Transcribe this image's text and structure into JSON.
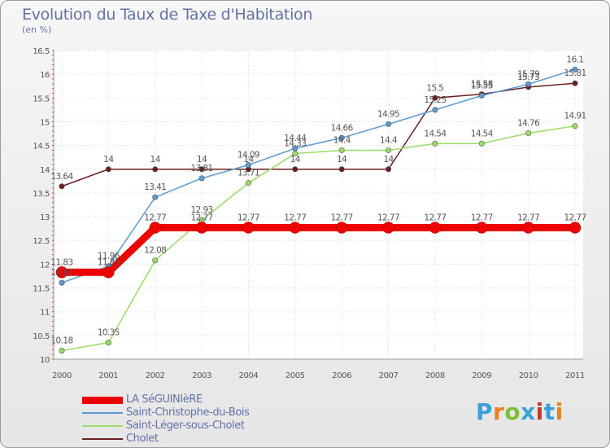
{
  "header": {
    "title": "Evolution du Taux de Taxe d'Habitation",
    "subtitle": "(en %)"
  },
  "logo": {
    "text": "Proxiti"
  },
  "chart_data": {
    "type": "line",
    "title": "Evolution du Taux de Taxe d'Habitation",
    "ylabel": "(en %)",
    "xlabel": "",
    "ylim": [
      10,
      16.5
    ],
    "grid": true,
    "x": [
      "2000",
      "2001",
      "2002",
      "2003",
      "2004",
      "2005",
      "2006",
      "2007",
      "2008",
      "2009",
      "2010",
      "2011"
    ],
    "yticks": [
      "10",
      "10.5",
      "11",
      "11.5",
      "12",
      "12.5",
      "13",
      "13.5",
      "14",
      "14.5",
      "15",
      "15.5",
      "16",
      "16.5"
    ],
    "series": [
      {
        "name": "LA SéGUINIèRE",
        "color": "#ee0000",
        "values": [
          11.83,
          11.83,
          12.77,
          12.77,
          12.77,
          12.77,
          12.77,
          12.77,
          12.77,
          12.77,
          12.77,
          12.77
        ],
        "labels": [
          "11.83",
          "11.83",
          "12.77",
          "12.77",
          "12.77",
          "12.77",
          "12.77",
          "12.77",
          "12.77",
          "12.77",
          "12.77",
          "12.77"
        ]
      },
      {
        "name": "Saint-Christophe-du-Bois",
        "color": "#5b9bd5",
        "values": [
          11.61,
          11.96,
          13.41,
          13.81,
          14.09,
          14.44,
          14.66,
          14.95,
          15.25,
          15.55,
          15.79,
          16.1
        ],
        "labels": [
          "11.61",
          "11.96",
          "13.41",
          "13.81",
          "14.09",
          "14.44",
          "14.66",
          "14.95",
          "15.25",
          "15.55",
          "15.79",
          "16.1"
        ]
      },
      {
        "name": "Saint-Léger-sous-Cholet",
        "color": "#99dd66",
        "values": [
          10.18,
          10.35,
          12.08,
          12.93,
          13.71,
          14.33,
          14.4,
          14.4,
          14.54,
          14.54,
          14.76,
          14.91
        ],
        "labels": [
          "10.18",
          "10.35",
          "12.08",
          "12.93",
          "13.71",
          "14.33",
          "14.4",
          "14.4",
          "14.54",
          "14.54",
          "14.76",
          "14.91"
        ]
      },
      {
        "name": "Cholet",
        "color": "#6b1f1f",
        "values": [
          13.64,
          14,
          14,
          14,
          14,
          14,
          14,
          14,
          15.5,
          15.58,
          15.73,
          15.81
        ],
        "labels": [
          "13.64",
          "14",
          "14",
          "14",
          "14",
          "14",
          "14",
          "14",
          "15.5",
          "15.58",
          "15.73",
          "15.81"
        ]
      }
    ]
  }
}
